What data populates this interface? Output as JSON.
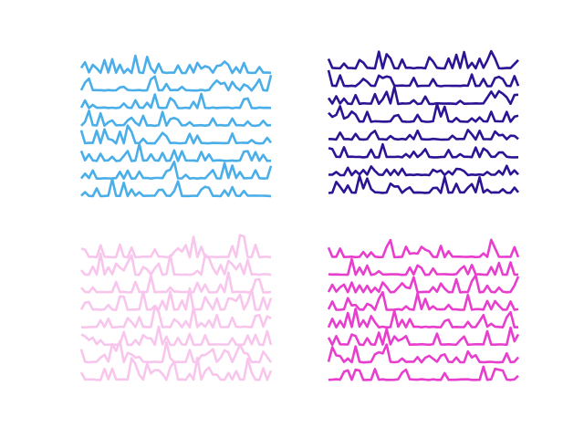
{
  "figure": {
    "background": "#ffffff"
  },
  "chart_data": [
    {
      "type": "line",
      "panel": "top-left",
      "color": "#4aaee8",
      "title": "",
      "xlabel": "",
      "ylabel": "",
      "axes_visible": false,
      "grid": false,
      "n_points": 50,
      "n_lines": 8,
      "spike_scale": 1.0,
      "seed": 11
    },
    {
      "type": "line",
      "panel": "top-right",
      "color": "#2d1494",
      "title": "",
      "xlabel": "",
      "ylabel": "",
      "axes_visible": false,
      "grid": false,
      "n_points": 50,
      "n_lines": 8,
      "spike_scale": 1.0,
      "seed": 29
    },
    {
      "type": "line",
      "panel": "bottom-left",
      "color": "#f8c6ec",
      "title": "",
      "xlabel": "",
      "ylabel": "",
      "axes_visible": false,
      "grid": false,
      "n_points": 50,
      "n_lines": 8,
      "spike_scale": 1.25,
      "seed": 47
    },
    {
      "type": "line",
      "panel": "bottom-right",
      "color": "#e83ecd",
      "title": "",
      "xlabel": "",
      "ylabel": "",
      "axes_visible": false,
      "grid": false,
      "n_points": 50,
      "n_lines": 8,
      "spike_scale": 1.1,
      "seed": 83
    }
  ]
}
